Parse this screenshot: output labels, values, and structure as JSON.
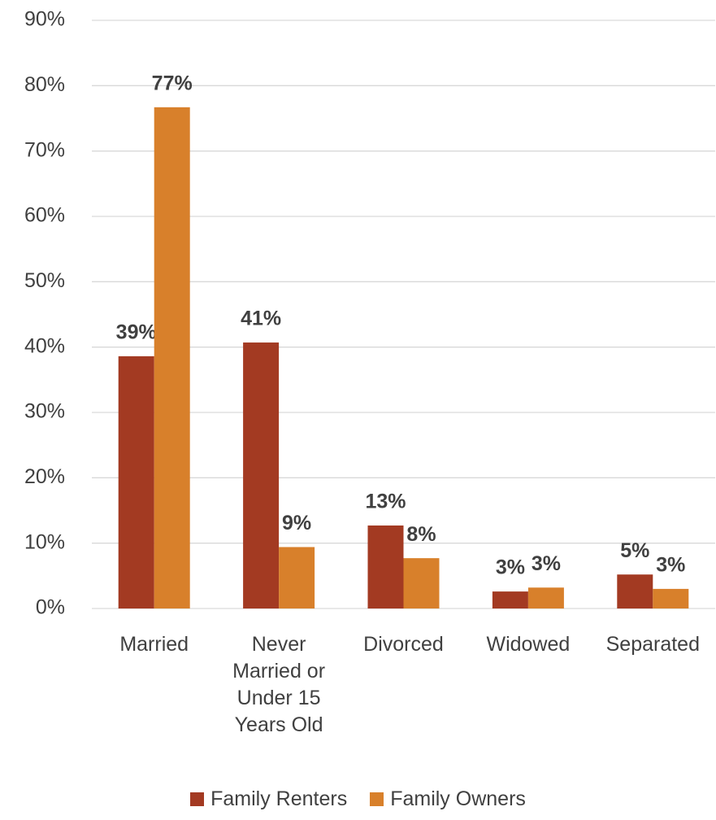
{
  "chart_data": {
    "type": "bar",
    "categories": [
      "Married",
      "Never Married or Under 15 Years Old",
      "Divorced",
      "Widowed",
      "Separated"
    ],
    "series": [
      {
        "name": "Family Renters",
        "color": "#a33a22",
        "values": [
          38.6,
          40.7,
          12.7,
          2.6,
          5.2
        ],
        "value_labels": [
          "39%",
          "41%",
          "13%",
          "3%",
          "5%"
        ]
      },
      {
        "name": "Family Owners",
        "color": "#d8802b",
        "values": [
          76.7,
          9.4,
          7.7,
          3.2,
          3.0
        ],
        "value_labels": [
          "77%",
          "9%",
          "8%",
          "3%",
          "3%"
        ]
      }
    ],
    "ylim": [
      0,
      90
    ],
    "yticks": [
      {
        "value": 0,
        "label": "0%"
      },
      {
        "value": 10,
        "label": "10%"
      },
      {
        "value": 20,
        "label": "20%"
      },
      {
        "value": 30,
        "label": "30%"
      },
      {
        "value": 40,
        "label": "40%"
      },
      {
        "value": 50,
        "label": "50%"
      },
      {
        "value": 60,
        "label": "60%"
      },
      {
        "value": 70,
        "label": "70%"
      },
      {
        "value": 80,
        "label": "80%"
      },
      {
        "value": 90,
        "label": "90%"
      }
    ],
    "grid": true,
    "legend": "bottom"
  }
}
